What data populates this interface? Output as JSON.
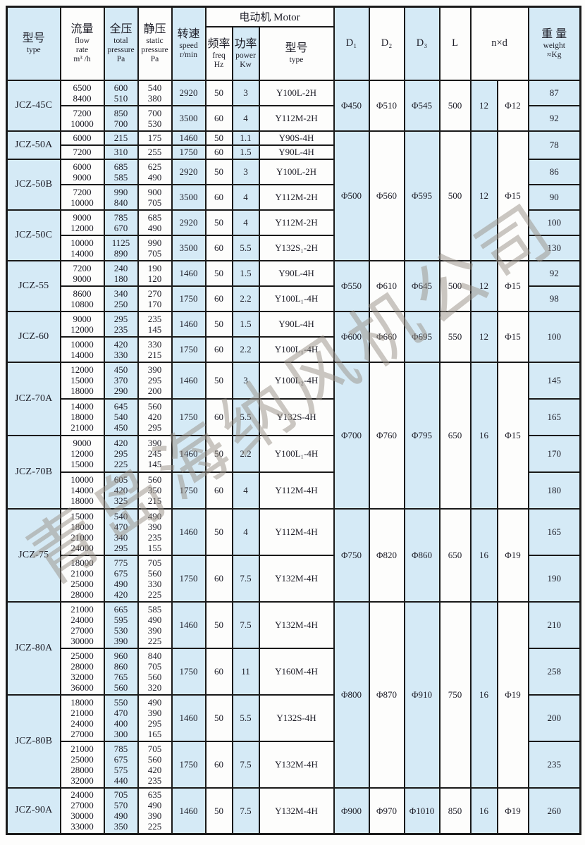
{
  "watermark": {
    "text": "青岛海纳风机公司"
  },
  "colors": {
    "cell_blue": "#d5eaf6",
    "border": "#1a1a1a",
    "text": "#1d1d27",
    "watermark_gray": "rgba(152,143,133,0.5)"
  },
  "table": {
    "header": {
      "model": {
        "zh": "型号",
        "en": "type"
      },
      "flow": {
        "zh": "流量",
        "en": "flow\nrate\nm³ /h"
      },
      "total": {
        "zh": "全压",
        "en": "total\npressure\nPa"
      },
      "static": {
        "zh": "静压",
        "en": "static\npressure\nPa"
      },
      "speed": {
        "zh": "转速",
        "en": "speed\nr/min"
      },
      "motor": {
        "label": "电动机 Motor"
      },
      "freq": {
        "zh": "频率",
        "en": "freq\nHz"
      },
      "power": {
        "zh": "功率",
        "en": "power\nKw"
      },
      "motor_type": {
        "zh": "型号",
        "en": "type"
      },
      "d1": {
        "label": "D₁"
      },
      "d2": {
        "label": "D₂"
      },
      "d3": {
        "label": "D₃"
      },
      "l": {
        "label": "L"
      },
      "nxd": {
        "label": "n×d"
      },
      "weight": {
        "zh": "重 量",
        "en": "weight\n≈Kg"
      }
    },
    "groups": [
      {
        "model": "JCZ-45C",
        "rows": [
          {
            "flow": "6500\n8400",
            "total": "600\n510",
            "static": "540\n380",
            "speed": "2920",
            "freq": "50",
            "power": "3",
            "motor": "Y100L-2H",
            "weight": "87"
          },
          {
            "flow": "7200\n10000",
            "total": "850\n700",
            "static": "700\n530",
            "speed": "3500",
            "freq": "60",
            "power": "4",
            "motor": "Y112M-2H",
            "weight": "92"
          }
        ]
      },
      {
        "model": "JCZ-50A",
        "rows": [
          {
            "flow": "6000",
            "total": "215",
            "static": "175",
            "speed": "1460",
            "freq": "50",
            "power": "1.1",
            "motor": "Y90S-4H",
            "weight": "78",
            "weight_rows": 2
          },
          {
            "flow": "7200",
            "total": "310",
            "static": "255",
            "speed": "1750",
            "freq": "60",
            "power": "1.5",
            "motor": "Y90L-4H"
          }
        ]
      },
      {
        "model": "JCZ-50B",
        "rows": [
          {
            "flow": "6000\n9000",
            "total": "685\n585",
            "static": "625\n490",
            "speed": "2920",
            "freq": "50",
            "power": "3",
            "motor": "Y100L-2H",
            "weight": "86"
          },
          {
            "flow": "7200\n10000",
            "total": "990\n840",
            "static": "900\n705",
            "speed": "3500",
            "freq": "60",
            "power": "4",
            "motor": "Y112M-2H",
            "weight": "90"
          }
        ]
      },
      {
        "model": "JCZ-50C",
        "rows": [
          {
            "flow": "9000\n12000",
            "total": "785\n670",
            "static": "685\n490",
            "speed": "2920",
            "freq": "50",
            "power": "4",
            "motor": "Y112M-2H",
            "weight": "100"
          },
          {
            "flow": "10000\n14000",
            "total": "1125\n890",
            "static": "990\n705",
            "speed": "3500",
            "freq": "60",
            "power": "5.5",
            "motor": "Y132S₁-2H",
            "weight": "130"
          }
        ]
      },
      {
        "model": "JCZ-55",
        "rows": [
          {
            "flow": "7200\n9000",
            "total": "240\n180",
            "static": "190\n120",
            "speed": "1460",
            "freq": "50",
            "power": "1.5",
            "motor": "Y90L-4H",
            "weight": "92"
          },
          {
            "flow": "8600\n10800",
            "total": "340\n250",
            "static": "270\n170",
            "speed": "1750",
            "freq": "60",
            "power": "2.2",
            "motor": "Y100L₁-4H",
            "weight": "98"
          }
        ]
      },
      {
        "model": "JCZ-60",
        "rows": [
          {
            "flow": "9000\n12000",
            "total": "295\n235",
            "static": "235\n145",
            "speed": "1460",
            "freq": "50",
            "power": "1.5",
            "motor": "Y90L-4H",
            "weight": "100",
            "weight_rows": 2
          },
          {
            "flow": "10000\n14000",
            "total": "420\n330",
            "static": "330\n215",
            "speed": "1750",
            "freq": "60",
            "power": "2.2",
            "motor": "Y100L₁-4H"
          }
        ]
      },
      {
        "model": "JCZ-70A",
        "rows": [
          {
            "flow": "12000\n15000\n18000",
            "total": "450\n370\n290",
            "static": "390\n295\n200",
            "speed": "1460",
            "freq": "50",
            "power": "3",
            "motor": "Y100L₂-4H",
            "weight": "145"
          },
          {
            "flow": "14000\n18000\n21000",
            "total": "645\n540\n450",
            "static": "560\n420\n295",
            "speed": "1750",
            "freq": "60",
            "power": "5.5",
            "motor": "Y132S-4H",
            "weight": "165"
          }
        ]
      },
      {
        "model": "JCZ-70B",
        "rows": [
          {
            "flow": "9000\n12000\n15000",
            "total": "420\n295\n225",
            "static": "390\n245\n145",
            "speed": "1460",
            "freq": "50",
            "power": "2.2",
            "motor": "Y100L₁-4H",
            "weight": "170"
          },
          {
            "flow": "10000\n14000\n18000",
            "total": "605\n420\n325",
            "static": "560\n350\n215",
            "speed": "1750",
            "freq": "60",
            "power": "4",
            "motor": "Y112M-4H",
            "weight": "180"
          }
        ]
      },
      {
        "model": "JCZ-75",
        "rows": [
          {
            "flow": "15000\n18000\n21000\n24000",
            "total": "540\n470\n340\n295",
            "static": "490\n390\n235\n155",
            "speed": "1460",
            "freq": "50",
            "power": "4",
            "motor": "Y112M-4H",
            "weight": "165"
          },
          {
            "flow": "18000\n21000\n25000\n28000",
            "total": "775\n675\n490\n420",
            "static": "705\n560\n330\n225",
            "speed": "1750",
            "freq": "60",
            "power": "7.5",
            "motor": "Y132M-4H",
            "weight": "190"
          }
        ]
      },
      {
        "model": "JCZ-80A",
        "rows": [
          {
            "flow": "21000\n24000\n27000\n30000",
            "total": "665\n595\n530\n390",
            "static": "585\n490\n390\n225",
            "speed": "1460",
            "freq": "50",
            "power": "7.5",
            "motor": "Y132M-4H",
            "weight": "210"
          },
          {
            "flow": "25000\n28000\n32000\n36000",
            "total": "960\n860\n765\n560",
            "static": "840\n705\n560\n320",
            "speed": "1750",
            "freq": "60",
            "power": "11",
            "motor": "Y160M-4H",
            "weight": "258"
          }
        ]
      },
      {
        "model": "JCZ-80B",
        "rows": [
          {
            "flow": "18000\n21000\n24000\n27000",
            "total": "550\n470\n400\n300",
            "static": "490\n390\n295\n165",
            "speed": "1460",
            "freq": "50",
            "power": "5.5",
            "motor": "Y132S-4H",
            "weight": "200"
          },
          {
            "flow": "21000\n25000\n28000\n32000",
            "total": "785\n675\n575\n440",
            "static": "705\n560\n420\n235",
            "speed": "1750",
            "freq": "60",
            "power": "7.5",
            "motor": "Y132M-4H",
            "weight": "235"
          }
        ]
      },
      {
        "model": "JCZ-90A",
        "rows": [
          {
            "flow": "24000\n27000\n30000\n33000",
            "total": "705\n570\n490\n350",
            "static": "635\n490\n390\n225",
            "speed": "1460",
            "freq": "50",
            "power": "7.5",
            "motor": "Y132M-4H",
            "weight": "260"
          }
        ]
      }
    ],
    "dims": [
      {
        "at_group": 0,
        "rows": 2,
        "d1": "Φ450",
        "d2": "Φ510",
        "d3": "Φ545",
        "l": "500",
        "n": "12",
        "d": "Φ12"
      },
      {
        "at_group": 1,
        "rows": 6,
        "d1": "Φ500",
        "d2": "Φ560",
        "d3": "Φ595",
        "l": "500",
        "n": "12",
        "d": "Φ15"
      },
      {
        "at_group": 4,
        "rows": 2,
        "d1": "Φ550",
        "d2": "Φ610",
        "d3": "Φ645",
        "l": "500",
        "n": "12",
        "d": "Φ15"
      },
      {
        "at_group": 5,
        "rows": 2,
        "d1": "Φ600",
        "d2": "Φ660",
        "d3": "Φ695",
        "l": "550",
        "n": "12",
        "d": "Φ15"
      },
      {
        "at_group": 6,
        "rows": 4,
        "d1": "Φ700",
        "d2": "Φ760",
        "d3": "Φ795",
        "l": "650",
        "n": "16",
        "d": "Φ15"
      },
      {
        "at_group": 8,
        "rows": 2,
        "d1": "Φ750",
        "d2": "Φ820",
        "d3": "Φ860",
        "l": "650",
        "n": "16",
        "d": "Φ19"
      },
      {
        "at_group": 9,
        "rows": 4,
        "d1": "Φ800",
        "d2": "Φ870",
        "d3": "Φ910",
        "l": "750",
        "n": "16",
        "d": "Φ19"
      },
      {
        "at_group": 11,
        "rows": 1,
        "d1": "Φ900",
        "d2": "Φ970",
        "d3": "Φ1010",
        "l": "850",
        "n": "16",
        "d": "Φ19"
      }
    ]
  }
}
